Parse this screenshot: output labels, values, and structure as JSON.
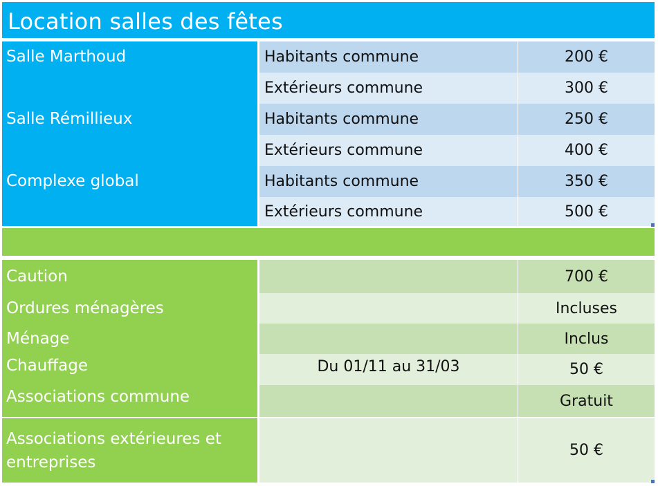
{
  "title": "Location salles des fêtes",
  "rental": [
    {
      "room": "Salle Marthoud",
      "category": "Habitants commune",
      "price": "200 €"
    },
    {
      "room": "",
      "category": "Extérieurs commune",
      "price": "300 €"
    },
    {
      "room": "Salle Rémillieux",
      "category": "Habitants commune",
      "price": "250 €"
    },
    {
      "room": "",
      "category": "Extérieurs commune",
      "price": "400 €"
    },
    {
      "room": "Complexe global",
      "category": "Habitants commune",
      "price": "350 €"
    },
    {
      "room": "",
      "category": "Extérieurs commune",
      "price": "500 €"
    }
  ],
  "extras": [
    {
      "label": "Caution",
      "detail": "",
      "value": "700 €"
    },
    {
      "label": "Ordures ménagères",
      "detail": "",
      "value": "Incluses"
    },
    {
      "label": "Ménage",
      "detail": "",
      "value": "Inclus"
    },
    {
      "label": "Chauffage",
      "detail": "Du 01/11 au 31/03",
      "value": "50 €"
    },
    {
      "label": "Associations commune",
      "detail": "",
      "value": "Gratuit"
    },
    {
      "label": "Associations extérieures et entreprises",
      "detail": "",
      "value": "50 €"
    }
  ]
}
